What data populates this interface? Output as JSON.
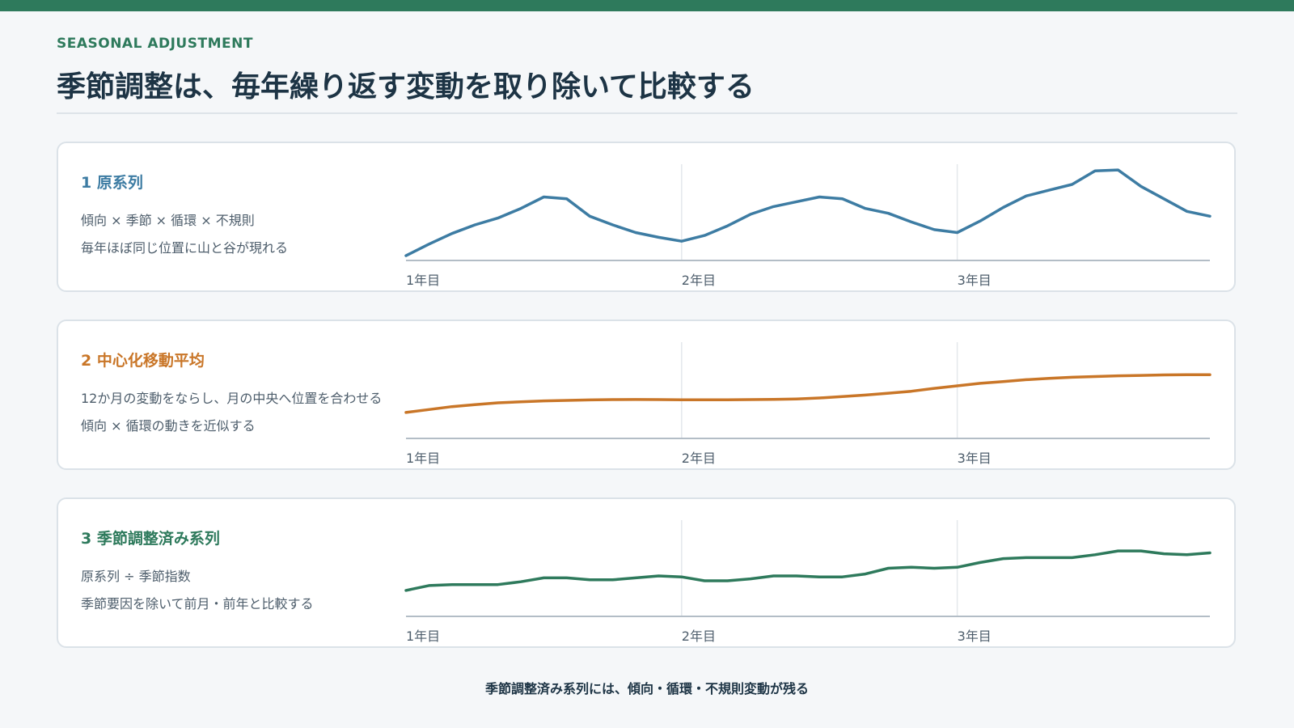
{
  "header": {
    "eyebrow": "SEASONAL ADJUSTMENT",
    "title": "季節調整は、毎年繰り返す変動を取り除いて比較する"
  },
  "panels": [
    {
      "heading": "1 原系列",
      "line1": "傾向 × 季節 × 循環 × 不規則",
      "line2": "毎年ほぼ同じ位置に山と谷が現れる",
      "color": "#3d7ca3"
    },
    {
      "heading": "2 中心化移動平均",
      "line1": "12か月の変動をならし、月の中央へ位置を合わせる",
      "line2": "傾向 × 循環の動きを近似する",
      "color": "#c97628"
    },
    {
      "heading": "3 季節調整済み系列",
      "line1": "原系列 ÷ 季節指数",
      "line2": "季節要因を除いて前月・前年と比較する",
      "color": "#2e7a5c"
    }
  ],
  "footer": "季節調整済み系列には、傾向・循環・不規則変動が残る",
  "chart_data": [
    {
      "type": "line",
      "series_color": "#3d7ca3",
      "categories": [
        "1年目",
        "2年目",
        "3年目"
      ],
      "x": [
        0,
        1,
        2,
        3,
        4,
        5,
        6,
        7,
        8,
        9,
        10,
        11,
        12,
        13,
        14,
        15,
        16,
        17,
        18,
        19,
        20,
        21,
        22,
        23,
        24,
        25,
        26,
        27,
        28,
        29,
        30,
        31,
        32,
        33,
        34,
        35
      ],
      "values": [
        5,
        17,
        28,
        37,
        44,
        54,
        66,
        64,
        46,
        37,
        29,
        24,
        20,
        26,
        36,
        48,
        56,
        61,
        66,
        64,
        54,
        49,
        40,
        32,
        29,
        41,
        55,
        67,
        73,
        79,
        93,
        94,
        77,
        64,
        51,
        46
      ],
      "ylim": [
        0,
        100
      ]
    },
    {
      "type": "line",
      "series_color": "#c97628",
      "categories": [
        "1年目",
        "2年目",
        "3年目"
      ],
      "x": [
        0,
        1,
        2,
        3,
        4,
        5,
        6,
        7,
        8,
        9,
        10,
        11,
        12,
        13,
        14,
        15,
        16,
        17,
        18,
        19,
        20,
        21,
        22,
        23,
        24,
        25,
        26,
        27,
        28,
        29,
        30,
        31,
        32,
        33,
        34,
        35
      ],
      "values": [
        27,
        30,
        33,
        35,
        37,
        38,
        39,
        39.5,
        40,
        40.3,
        40.4,
        40.3,
        40.2,
        40.2,
        40.2,
        40.3,
        40.5,
        41,
        42,
        43.5,
        45,
        47,
        49,
        52,
        54.6,
        57.2,
        59,
        61,
        62.4,
        63.5,
        64.3,
        65,
        65.5,
        66,
        66.1,
        66.1
      ],
      "ylim": [
        0,
        100
      ]
    },
    {
      "type": "line",
      "series_color": "#2e7a5c",
      "categories": [
        "1年目",
        "2年目",
        "3年目"
      ],
      "x": [
        0,
        1,
        2,
        3,
        4,
        5,
        6,
        7,
        8,
        9,
        10,
        11,
        12,
        13,
        14,
        15,
        16,
        17,
        18,
        19,
        20,
        21,
        22,
        23,
        24,
        25,
        26,
        27,
        28,
        29,
        30,
        31,
        32,
        33,
        34,
        35
      ],
      "values": [
        27,
        32,
        33,
        33,
        33,
        36,
        40,
        40,
        38,
        38,
        40,
        42,
        41,
        37,
        37,
        39,
        42,
        42,
        41,
        41,
        44,
        50,
        51,
        50,
        51,
        56,
        60,
        61,
        61,
        61,
        64,
        68,
        68,
        65,
        64,
        66
      ],
      "ylim": [
        0,
        100
      ]
    }
  ]
}
